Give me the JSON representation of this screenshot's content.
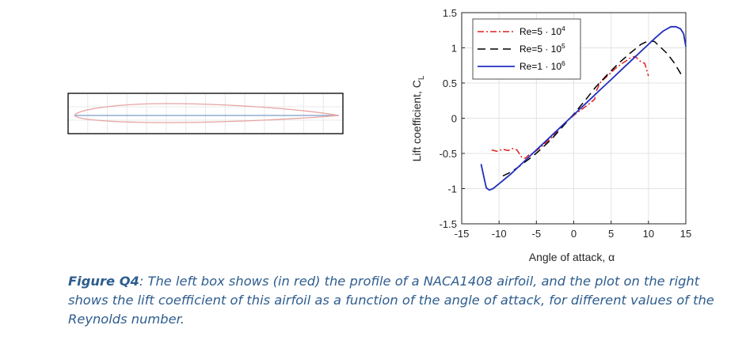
{
  "figure": {
    "caption_label": "Figure Q4",
    "caption_text": ": The left box shows (in red) the profile of a NACA1408 airfoil, and the plot on the right shows the lift coefficient of this airfoil as a function of the angle of attack, for different values of the Reynolds number."
  },
  "colors": {
    "airfoil_profile": "#e8a3a3",
    "chord_line": "#7a9ec8",
    "caption": "#2e5d8e"
  },
  "chart_data": {
    "type": "line",
    "xlabel": "Angle of attack, α",
    "ylabel": "Lift coefficient, C",
    "ylabel_subscript": "L",
    "xlim": [
      -15,
      15
    ],
    "ylim": [
      -1.5,
      1.5
    ],
    "xticks": [
      "-15",
      "-10",
      "-5",
      "0",
      "5",
      "10",
      "15"
    ],
    "yticks": [
      "-1.5",
      "-1",
      "-0.5",
      "0",
      "0.5",
      "1",
      "1.5"
    ],
    "grid": true,
    "legend_position": "top-left",
    "series": [
      {
        "name": "Re=5 · 10",
        "exponent": "4",
        "color": "#e02020",
        "dash": "8,3,2,3",
        "x": [
          -11,
          -10.3,
          -9.5,
          -8.8,
          -8.2,
          -7.6,
          -7,
          -6.5,
          -6,
          -5.5,
          -4.5,
          -3,
          -1.5,
          0,
          1,
          2,
          2.8,
          3,
          3.5,
          4.5,
          5.5,
          6.5,
          7.5,
          8.2,
          9,
          9.5,
          10
        ],
        "y": [
          -0.45,
          -0.47,
          -0.44,
          -0.46,
          -0.43,
          -0.45,
          -0.55,
          -0.57,
          -0.52,
          -0.5,
          -0.42,
          -0.28,
          -0.1,
          0.04,
          0.12,
          0.2,
          0.27,
          0.38,
          0.5,
          0.6,
          0.7,
          0.78,
          0.85,
          0.88,
          0.8,
          0.78,
          0.6
        ]
      },
      {
        "name": "Re=5 · 10",
        "exponent": "5",
        "color": "#000000",
        "dash": "10,6",
        "x": [
          -9.5,
          -8.5,
          -7.5,
          -6.5,
          -5.5,
          -4.5,
          -3,
          -1.5,
          0,
          1.5,
          3,
          4.5,
          6,
          7.5,
          9,
          10,
          10.8,
          11.5,
          12.5,
          13.5,
          14.5
        ],
        "y": [
          -0.82,
          -0.77,
          -0.7,
          -0.62,
          -0.54,
          -0.45,
          -0.3,
          -0.12,
          0.06,
          0.25,
          0.45,
          0.62,
          0.78,
          0.92,
          1.05,
          1.1,
          1.09,
          1.02,
          0.92,
          0.78,
          0.6
        ]
      },
      {
        "name": "Re=1 · 10",
        "exponent": "6",
        "color": "#1f2fbf",
        "dash": "",
        "x": [
          -12.4,
          -12,
          -11.7,
          -11.3,
          -10.8,
          -10,
          -8.5,
          -7,
          -5.5,
          -4,
          -2.5,
          -1,
          0.5,
          2,
          3.5,
          5,
          6.5,
          8,
          9.5,
          11,
          12,
          13,
          13.7,
          14.3,
          14.7,
          15
        ],
        "y": [
          -0.65,
          -0.85,
          -0.99,
          -1.02,
          -1.0,
          -0.93,
          -0.8,
          -0.65,
          -0.5,
          -0.35,
          -0.2,
          -0.05,
          0.1,
          0.25,
          0.4,
          0.55,
          0.7,
          0.85,
          1.0,
          1.15,
          1.24,
          1.3,
          1.3,
          1.27,
          1.2,
          1.02
        ]
      }
    ]
  }
}
